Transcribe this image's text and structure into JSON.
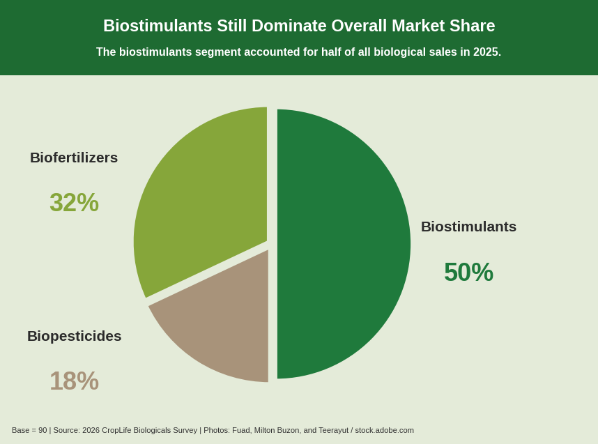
{
  "chart_data": {
    "type": "pie",
    "title": "Biostimulants Still Dominate Overall Market Share",
    "subtitle": "The biostimulants segment accounted for half of all biological sales in 2025.",
    "categories": [
      "Biostimulants",
      "Biopesticides",
      "Biofertilizers"
    ],
    "values": [
      50,
      18,
      32
    ],
    "value_labels": [
      "50%",
      "18%",
      "32%"
    ],
    "colors": [
      "#1f7a3c",
      "#a8937a",
      "#86a63a"
    ],
    "data_labels": true,
    "annotations": [
      "Base = 90 | Source: 2026 CropLife Biologicals Survey | Photos: Fuad, Milton Buzon, and Teerayut / stock.adobe.com"
    ]
  }
}
